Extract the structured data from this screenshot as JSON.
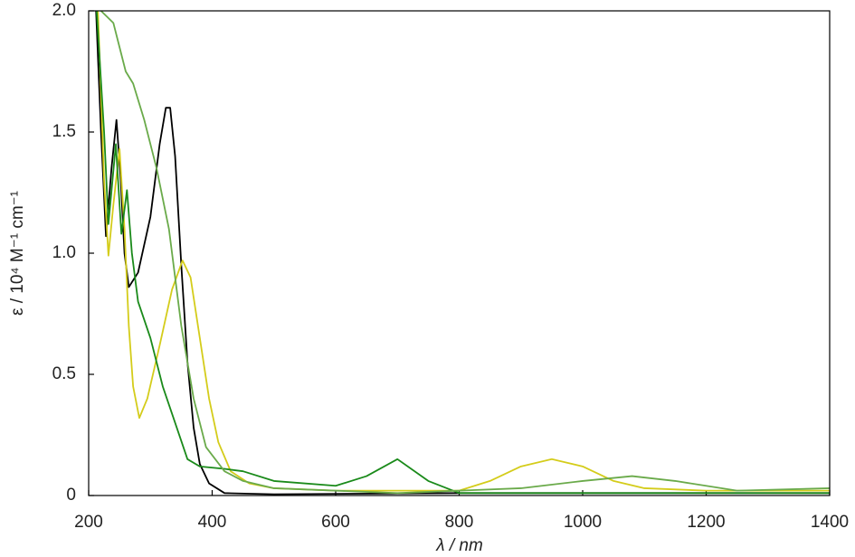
{
  "chart_data": {
    "type": "line",
    "x_label": "λ / nm",
    "y_label": "ε / 10⁴ M⁻¹ cm⁻¹",
    "xlim": [
      200,
      1400
    ],
    "xticks": [
      200,
      400,
      600,
      800,
      1000,
      1200,
      1400
    ],
    "ylim": [
      0,
      2
    ],
    "yticks": [
      0,
      0.5,
      {
        "value": 1,
        "label": "1.0"
      },
      1.5,
      {
        "value": 2,
        "label": "2.0"
      }
    ],
    "grid": false,
    "series": [
      {
        "color": "#000000",
        "x": [
          212,
          220,
          228,
          237,
          245,
          252,
          258,
          265,
          280,
          300,
          315,
          325,
          332,
          340,
          350,
          360,
          370,
          380,
          395,
          420,
          500,
          800,
          1000,
          1400
        ],
        "values": [
          2.0,
          1.5,
          1.07,
          1.35,
          1.55,
          1.3,
          1.0,
          0.86,
          0.92,
          1.15,
          1.45,
          1.6,
          1.6,
          1.4,
          0.95,
          0.55,
          0.28,
          0.13,
          0.05,
          0.01,
          0.005,
          0.01,
          0.01,
          0.01
        ]
      },
      {
        "color": "#d4cc1a",
        "x": [
          215,
          225,
          232,
          240,
          250,
          258,
          265,
          272,
          282,
          295,
          315,
          335,
          352,
          365,
          380,
          395,
          410,
          430,
          460,
          500,
          600,
          800,
          850,
          900,
          950,
          1000,
          1050,
          1100,
          1200,
          1400
        ],
        "values": [
          2.0,
          1.3,
          0.99,
          1.2,
          1.43,
          1.1,
          0.7,
          0.45,
          0.32,
          0.4,
          0.62,
          0.85,
          0.97,
          0.9,
          0.65,
          0.4,
          0.22,
          0.1,
          0.05,
          0.03,
          0.02,
          0.02,
          0.06,
          0.12,
          0.15,
          0.12,
          0.06,
          0.03,
          0.02,
          0.02
        ]
      },
      {
        "color": "#1a8a1a",
        "x": [
          213,
          225,
          232,
          244,
          253,
          262,
          270,
          280,
          300,
          320,
          340,
          360,
          380,
          420,
          450,
          500,
          600,
          650,
          700,
          750,
          800,
          1400
        ],
        "values": [
          2.0,
          1.5,
          1.12,
          1.45,
          1.08,
          1.26,
          1.0,
          0.8,
          0.65,
          0.45,
          0.3,
          0.15,
          0.12,
          0.11,
          0.1,
          0.06,
          0.04,
          0.08,
          0.15,
          0.06,
          0.01,
          0.01
        ]
      },
      {
        "color": "#6aaa4a",
        "x": [
          220,
          240,
          260,
          272,
          290,
          310,
          330,
          350,
          370,
          390,
          420,
          450,
          500,
          700,
          900,
          1000,
          1080,
          1150,
          1250,
          1400
        ],
        "values": [
          2.0,
          1.95,
          1.75,
          1.7,
          1.55,
          1.35,
          1.1,
          0.7,
          0.4,
          0.2,
          0.1,
          0.06,
          0.03,
          0.01,
          0.03,
          0.06,
          0.08,
          0.06,
          0.02,
          0.03
        ]
      }
    ]
  }
}
